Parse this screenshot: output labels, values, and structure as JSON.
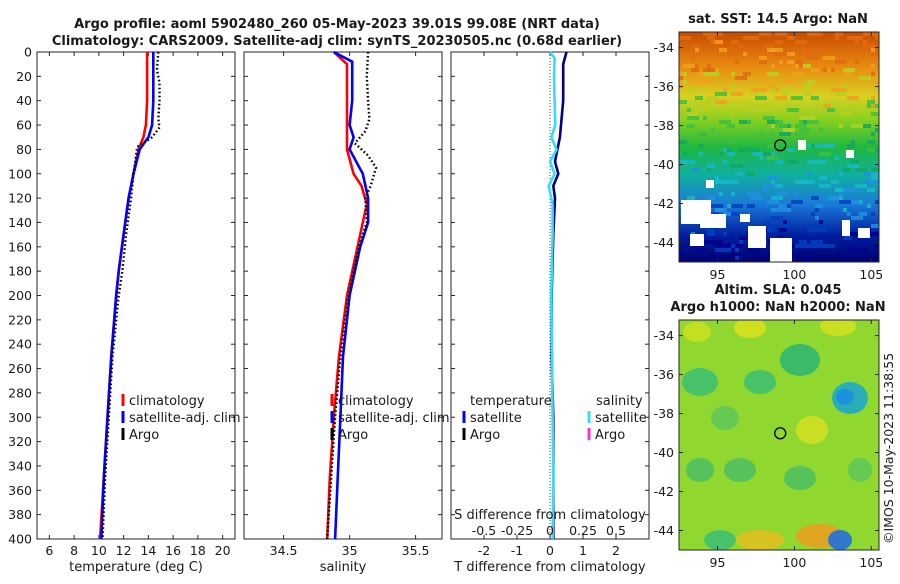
{
  "header": {
    "line1": "Argo profile: aoml 5902480_260 05-May-2023 39.01S 99.08E (NRT data)",
    "line2": "Climatology: CARS2009. Satellite-adj clim: synTS_20230505.nc (0.68d earlier)"
  },
  "timestamp": "©IMOS 10-May-2023 11:38:55",
  "colors": {
    "climatology": "#ff0000",
    "satellite": "#0000ff",
    "argo": "#000000",
    "salinity_sat": "#33ddff",
    "salinity_argo": "#ff33cc"
  },
  "chart_data": [
    {
      "type": "line",
      "id": "temperature",
      "xlabel": "temperature (deg C)",
      "ylabel": "",
      "xlim": [
        5,
        21
      ],
      "ylim": [
        400,
        0
      ],
      "xticks": [
        "6",
        "8",
        "10",
        "12",
        "14",
        "16",
        "18",
        "20"
      ],
      "xtick_values": [
        6,
        8,
        10,
        12,
        14,
        16,
        18,
        20
      ],
      "yticks": [
        "0",
        "20",
        "40",
        "60",
        "80",
        "100",
        "120",
        "140",
        "160",
        "180",
        "200",
        "220",
        "240",
        "260",
        "280",
        "300",
        "320",
        "340",
        "360",
        "380",
        "400"
      ],
      "ytick_values": [
        0,
        20,
        40,
        60,
        80,
        100,
        120,
        140,
        160,
        180,
        200,
        220,
        240,
        260,
        280,
        300,
        320,
        340,
        360,
        380,
        400
      ],
      "legend": [
        "climatology",
        "satellite-adj. clim",
        "Argo"
      ],
      "series": [
        {
          "name": "climatology",
          "style": "solid",
          "color": "#ff0000",
          "depth": [
            0,
            20,
            40,
            60,
            70,
            80,
            100,
            120,
            150,
            180,
            200,
            250,
            300,
            350,
            400
          ],
          "values": [
            13.9,
            13.9,
            13.9,
            13.8,
            13.6,
            13.2,
            12.8,
            12.4,
            12.0,
            11.6,
            11.4,
            11.0,
            10.7,
            10.4,
            10.1
          ]
        },
        {
          "name": "satellite-adj. clim",
          "style": "solid",
          "color": "#0000ff",
          "depth": [
            0,
            20,
            40,
            60,
            70,
            80,
            100,
            120,
            150,
            180,
            200,
            250,
            300,
            350,
            400
          ],
          "values": [
            14.4,
            14.4,
            14.4,
            14.3,
            14.0,
            13.3,
            12.8,
            12.4,
            12.0,
            11.6,
            11.4,
            11.0,
            10.7,
            10.4,
            10.2
          ]
        },
        {
          "name": "Argo",
          "style": "dotted",
          "color": "#000000",
          "depth": [
            0,
            15,
            25,
            40,
            55,
            62,
            70,
            78,
            85,
            100,
            120,
            150,
            180,
            200,
            250,
            300,
            350,
            400
          ],
          "values": [
            14.8,
            14.7,
            14.9,
            14.9,
            14.8,
            14.9,
            14.3,
            13.1,
            13.0,
            12.8,
            12.6,
            12.2,
            11.9,
            11.6,
            11.1,
            10.8,
            10.5,
            10.3
          ]
        }
      ]
    },
    {
      "type": "line",
      "id": "salinity",
      "xlabel": "salinity",
      "xlim": [
        34.2,
        35.7
      ],
      "ylim": [
        400,
        0
      ],
      "xticks": [
        "34.5",
        "35",
        "35.5"
      ],
      "xtick_values": [
        34.5,
        35,
        35.5
      ],
      "legend": [
        "climatology",
        "satellite-adj. clim",
        "Argo"
      ],
      "series": [
        {
          "name": "climatology",
          "style": "solid",
          "color": "#ff0000",
          "depth": [
            0,
            10,
            40,
            60,
            80,
            100,
            110,
            125,
            150,
            200,
            250,
            300,
            350,
            400
          ],
          "values": [
            34.88,
            34.98,
            34.98,
            34.98,
            34.98,
            35.03,
            35.09,
            35.13,
            35.08,
            34.98,
            34.92,
            34.88,
            34.85,
            34.83
          ]
        },
        {
          "name": "satellite-adj. clim",
          "style": "solid",
          "color": "#0000ff",
          "depth": [
            0,
            8,
            40,
            60,
            70,
            80,
            100,
            120,
            140,
            160,
            200,
            250,
            300,
            350,
            400
          ],
          "values": [
            34.88,
            35.02,
            35.02,
            35.0,
            35.03,
            35.0,
            35.1,
            35.14,
            35.14,
            35.08,
            35.0,
            34.95,
            34.93,
            34.91,
            34.89
          ]
        },
        {
          "name": "Argo",
          "style": "dotted",
          "color": "#000000",
          "depth": [
            0,
            20,
            40,
            55,
            65,
            75,
            85,
            95,
            110,
            120,
            140,
            160,
            200,
            250,
            300,
            350,
            400
          ],
          "values": [
            35.14,
            35.13,
            35.14,
            35.15,
            35.12,
            35.04,
            35.14,
            35.2,
            35.16,
            35.12,
            35.13,
            35.07,
            34.99,
            34.93,
            34.89,
            34.86,
            34.83
          ]
        }
      ]
    },
    {
      "type": "line",
      "id": "difference",
      "xlabel": "T difference from climatology",
      "top_axis_label": "S difference from climatology",
      "xlim": [
        -3,
        3
      ],
      "ylim": [
        400,
        0
      ],
      "xticks": [
        "-2",
        "-1",
        "0",
        "1",
        "2"
      ],
      "xtick_values": [
        -2,
        -1,
        0,
        1,
        2
      ],
      "s_ticks": [
        "-0.5",
        "-0.25",
        "0",
        "0.25",
        "0.5"
      ],
      "s_tick_values": [
        -0.5,
        -0.25,
        0,
        0.25,
        0.5
      ],
      "s_lim": [
        -0.75,
        0.75
      ],
      "legend_temperature": {
        "title": "temperature",
        "items": [
          "satellite",
          "Argo"
        ]
      },
      "legend_salinity": {
        "title": "salinity",
        "items": [
          "satellite",
          "Argo"
        ]
      },
      "series": [
        {
          "name": "T satellite",
          "style": "solid",
          "color": "#000080",
          "depth": [
            0,
            10,
            40,
            70,
            90,
            100,
            110,
            120,
            150,
            200,
            250,
            300,
            350,
            400
          ],
          "values": [
            0.5,
            0.4,
            0.4,
            0.3,
            0.15,
            0.25,
            0.1,
            0.15,
            0.1,
            0.05,
            0.05,
            0.1,
            0.1,
            0.1
          ]
        },
        {
          "name": "S satellite",
          "style": "solid",
          "color": "#33ddff",
          "depth": [
            0,
            5,
            20,
            40,
            60,
            70,
            80,
            90,
            100,
            110,
            125,
            150,
            200,
            250,
            300,
            350,
            400
          ],
          "values": [
            0.0,
            0.035,
            0.03,
            0.035,
            0.04,
            0.01,
            0.05,
            0.0,
            0.035,
            -0.01,
            0.02,
            0.02,
            0.01,
            0.015,
            0.02,
            0.025,
            0.02
          ]
        }
      ]
    },
    {
      "type": "heatmap",
      "id": "sst_map",
      "title": "sat. SST: 14.5 Argo: NaN",
      "xticks": [
        "95",
        "100",
        "105"
      ],
      "xtick_values": [
        95,
        100,
        105
      ],
      "yticks": [
        "-34",
        "-36",
        "-38",
        "-40",
        "-42",
        "-44"
      ],
      "ytick_values": [
        -34,
        -36,
        -38,
        -40,
        -42,
        -44
      ],
      "xlim": [
        92.5,
        105.5
      ],
      "ylim": [
        -45,
        -33.2
      ],
      "marker": {
        "lon": 99.08,
        "lat": -39.01
      }
    },
    {
      "type": "heatmap",
      "id": "sla_map",
      "title_line1": "Altim. SLA: 0.045",
      "title_line2": "Argo h1000: NaN h2000: NaN",
      "xticks": [
        "95",
        "100",
        "105"
      ],
      "xtick_values": [
        95,
        100,
        105
      ],
      "yticks": [
        "-34",
        "-36",
        "-38",
        "-40",
        "-42",
        "-44"
      ],
      "ytick_values": [
        -34,
        -36,
        -38,
        -40,
        -42,
        -44
      ],
      "xlim": [
        92.5,
        105.5
      ],
      "ylim": [
        -45,
        -33.2
      ],
      "marker": {
        "lon": 99.08,
        "lat": -39.01
      }
    }
  ]
}
